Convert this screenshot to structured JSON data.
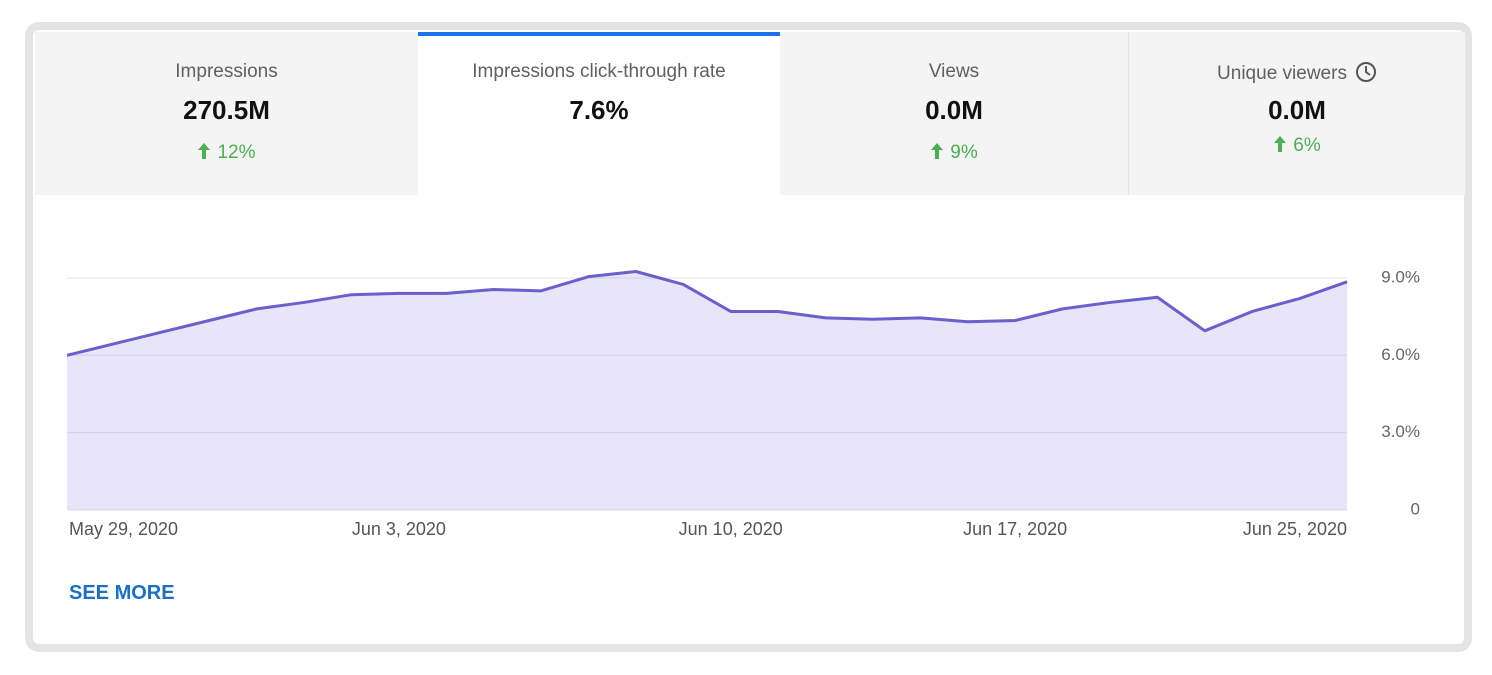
{
  "tabs": [
    {
      "label": "Impressions",
      "value": "270.5M",
      "change": "12%"
    },
    {
      "label": "Impressions click-through rate",
      "value": "7.6%"
    },
    {
      "label": "Views",
      "value": "0.0M",
      "change": "9%"
    },
    {
      "label": "Unique viewers",
      "value": "0.0M",
      "change": "6%"
    }
  ],
  "see_more": "SEE MORE",
  "chart_data": {
    "type": "area",
    "categories": [
      "May 29, 2020",
      null,
      null,
      null,
      null,
      null,
      null,
      "Jun 3, 2020",
      null,
      null,
      null,
      null,
      null,
      null,
      "Jun 10, 2020",
      null,
      null,
      null,
      null,
      null,
      "Jun 17, 2020",
      null,
      null,
      null,
      null,
      null,
      null,
      "Jun 25, 2020"
    ],
    "values": [
      6.0,
      6.45,
      6.9,
      7.35,
      7.8,
      8.05,
      8.35,
      8.4,
      8.4,
      8.55,
      8.5,
      9.05,
      9.25,
      8.75,
      7.7,
      7.7,
      7.45,
      7.4,
      7.45,
      7.3,
      7.35,
      7.8,
      8.05,
      8.25,
      6.95,
      7.7,
      8.2,
      8.85
    ],
    "color": "#6a5fcc",
    "ylim": [
      0,
      10.2
    ],
    "yticks": [
      0,
      {
        "value": 3,
        "label": "3.0%"
      },
      {
        "value": 6,
        "label": "6.0%"
      },
      {
        "value": 9,
        "label": "9.0%"
      }
    ],
    "grid": true
  }
}
